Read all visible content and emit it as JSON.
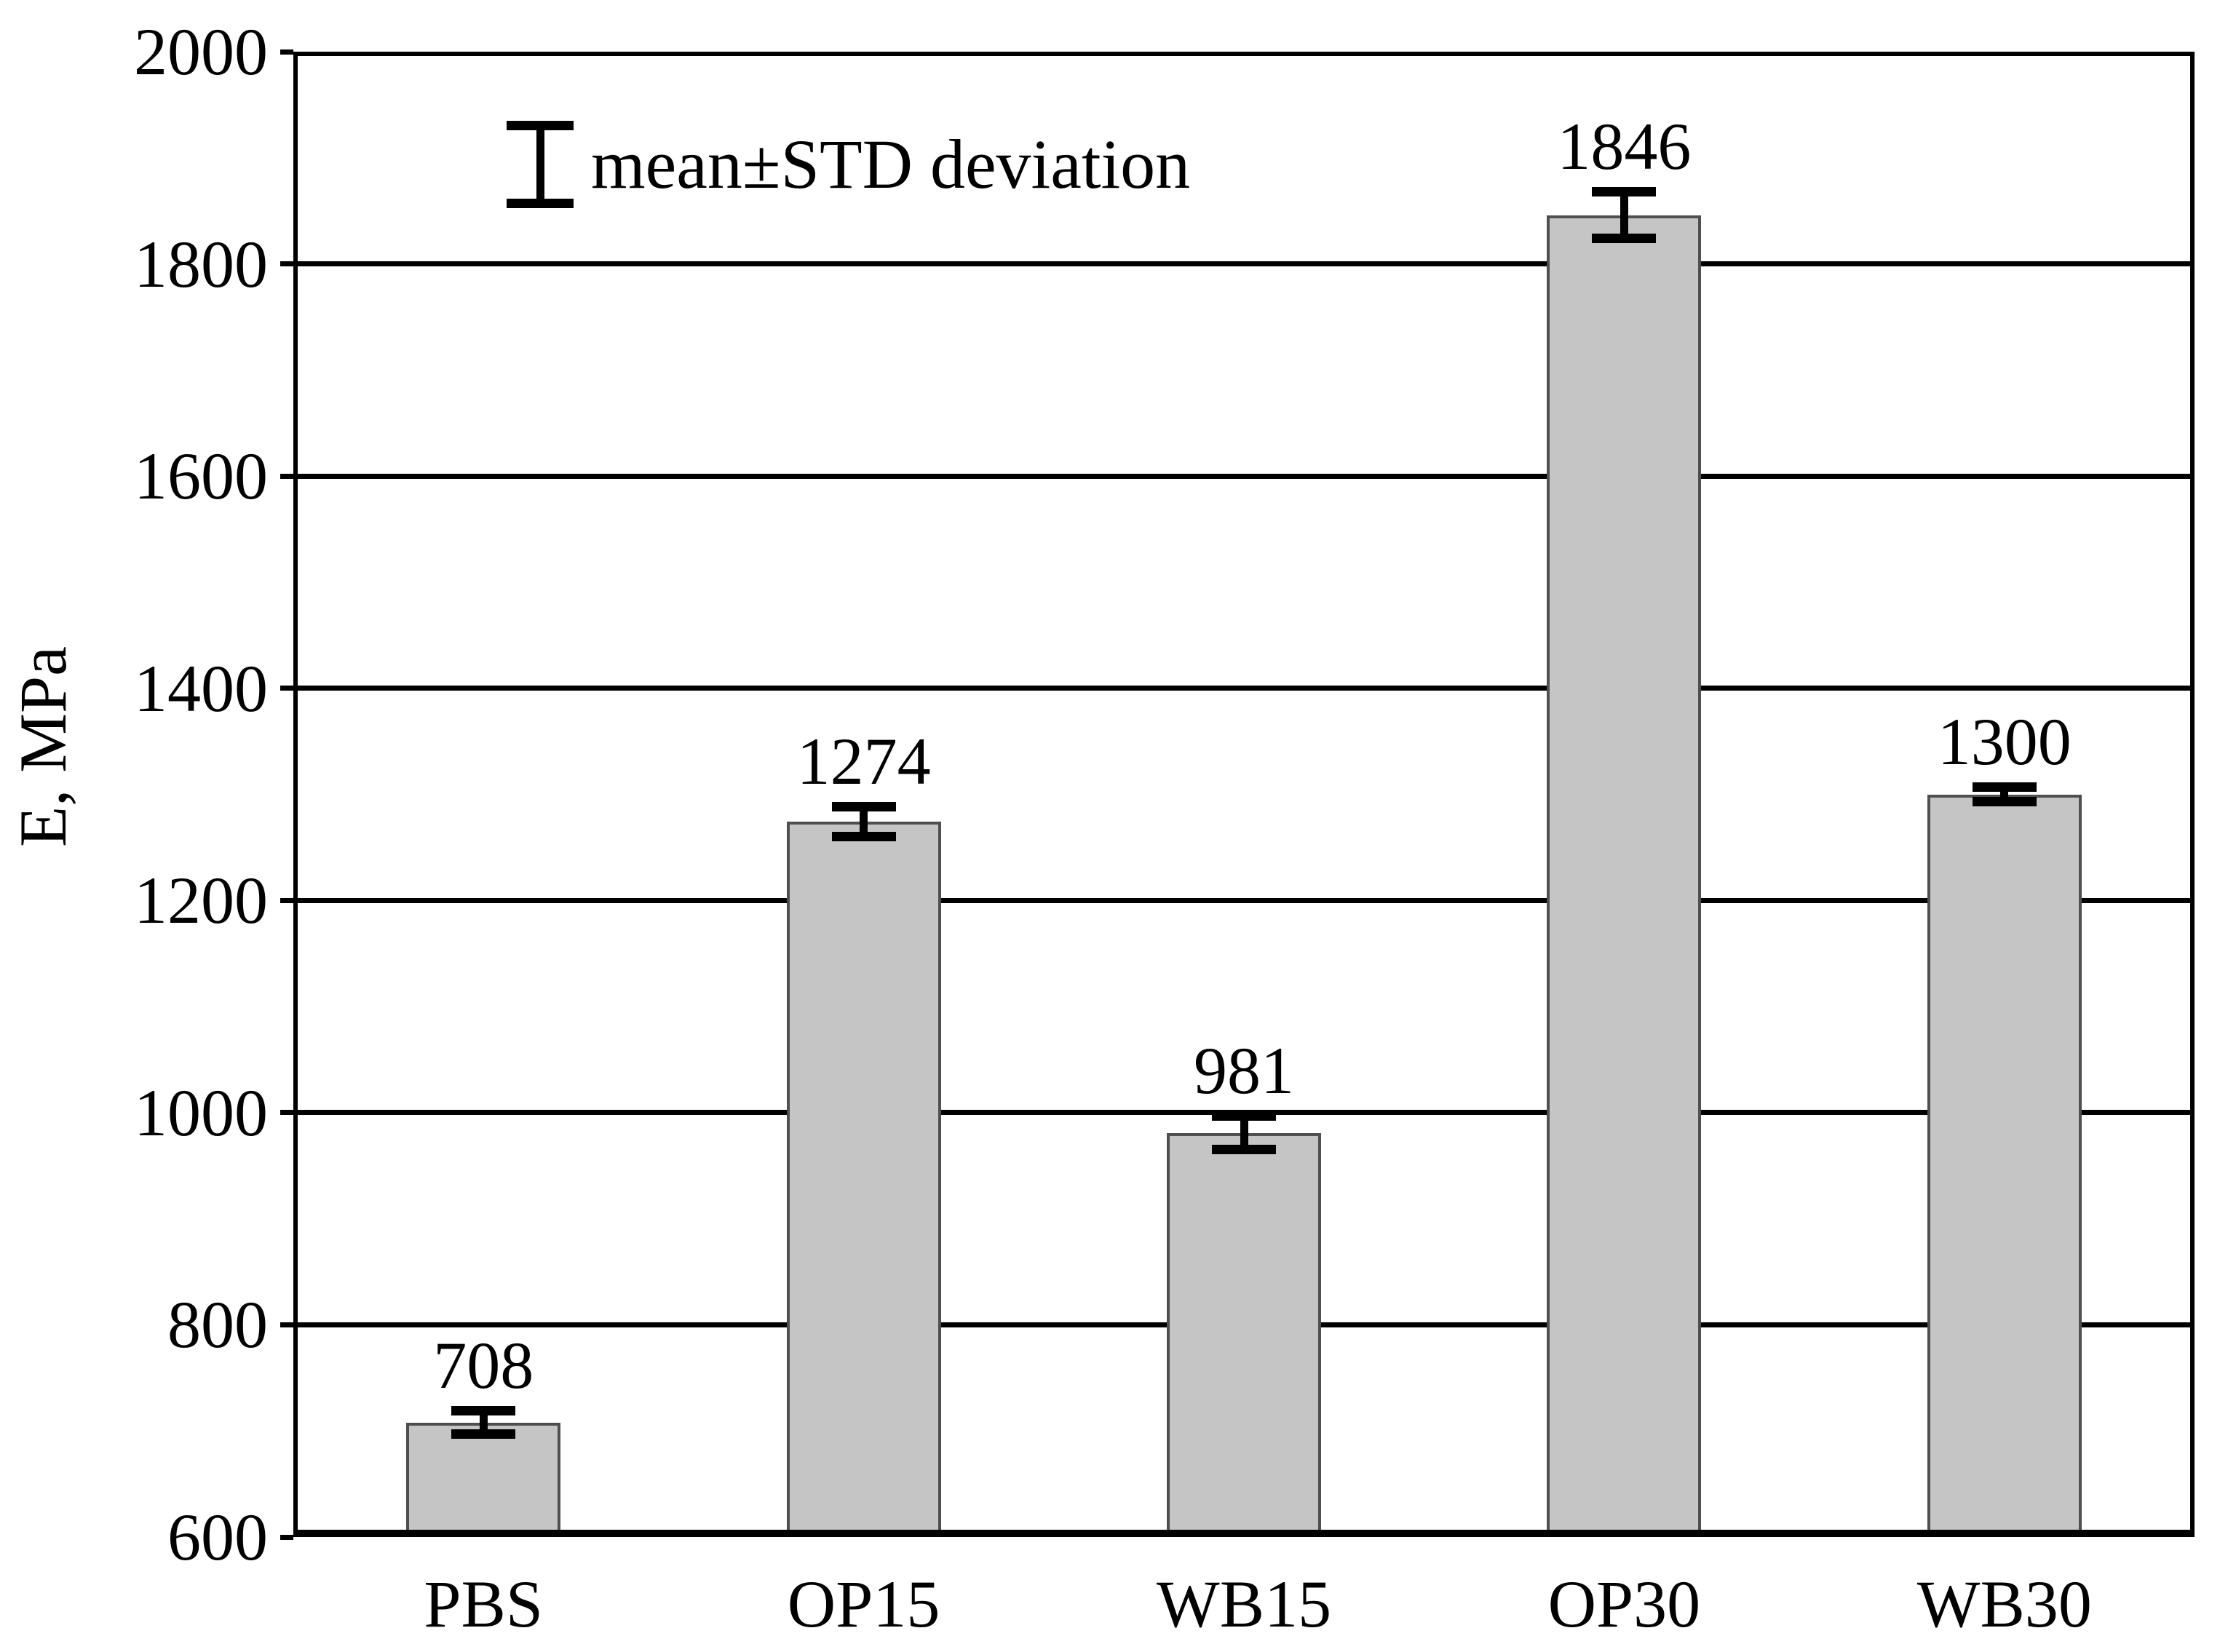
{
  "page": {
    "background": "#ffffff"
  },
  "chart_data": {
    "type": "bar",
    "title": "",
    "categories": [
      "PBS",
      "OP15",
      "WB15",
      "OP30",
      "WB30"
    ],
    "values": [
      708,
      1274,
      981,
      1846,
      1300
    ],
    "bar_value_labels": [
      "708",
      "1274",
      "981",
      "1846",
      "1300"
    ],
    "std_errors_estimated": [
      11,
      14,
      16,
      22,
      7
    ],
    "xlabel": "",
    "ylabel": "E, MPa",
    "ylim": [
      600,
      2000
    ],
    "yticks": [
      600,
      800,
      1000,
      1200,
      1400,
      1600,
      1800,
      2000
    ],
    "ytick_labels": [
      "600",
      "800",
      "1000",
      "1200",
      "1400",
      "1600",
      "1800",
      "2000"
    ],
    "grid": "horizontal",
    "legend": {
      "symbol": "error-bar-icon",
      "label": "mean±STD deviation",
      "position": "top-left-inside"
    },
    "colors": {
      "bar_fill": "#c5c5c5",
      "bar_border": "#4f4f4f",
      "axis": "#000000",
      "gridline": "#000000",
      "text": "#000000"
    }
  }
}
